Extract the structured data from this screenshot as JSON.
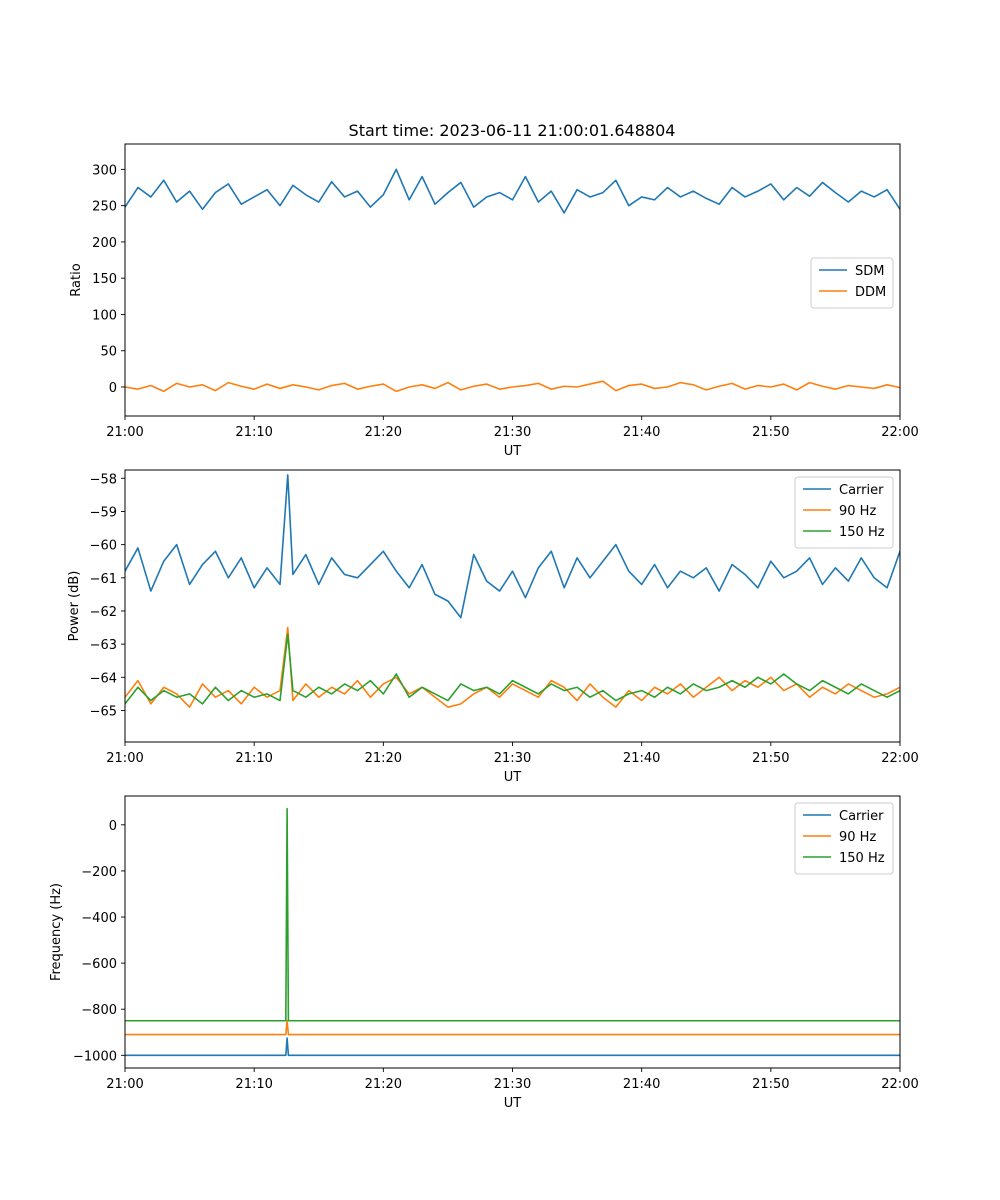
{
  "figure": {
    "title": "Start time: 2023-06-11 21:00:01.648804"
  },
  "colors": {
    "blue": "#1f77b4",
    "orange": "#ff7f0e",
    "green": "#2ca02c"
  },
  "chart_data": [
    {
      "type": "line",
      "title": "Start time: 2023-06-11 21:00:01.648804",
      "xlabel": "UT",
      "ylabel": "Ratio",
      "xlim": [
        "21:00",
        "22:00"
      ],
      "xticks": [
        "21:00",
        "21:10",
        "21:20",
        "21:30",
        "21:40",
        "21:50",
        "22:00"
      ],
      "ylim": [
        -40,
        335
      ],
      "yticks": [
        0,
        50,
        100,
        150,
        200,
        250,
        300
      ],
      "grid": false,
      "legend_position": "center-right",
      "x_minutes": [
        0,
        1,
        2,
        3,
        4,
        5,
        6,
        7,
        8,
        9,
        10,
        11,
        12,
        13,
        14,
        15,
        16,
        17,
        18,
        19,
        20,
        21,
        22,
        23,
        24,
        25,
        26,
        27,
        28,
        29,
        30,
        31,
        32,
        33,
        34,
        35,
        36,
        37,
        38,
        39,
        40,
        41,
        42,
        43,
        44,
        45,
        46,
        47,
        48,
        49,
        50,
        51,
        52,
        53,
        54,
        55,
        56,
        57,
        58,
        59,
        60
      ],
      "series": [
        {
          "name": "SDM",
          "color": "#1f77b4",
          "values": [
            248,
            275,
            262,
            285,
            255,
            270,
            245,
            268,
            280,
            252,
            262,
            272,
            250,
            278,
            265,
            255,
            283,
            262,
            270,
            248,
            265,
            300,
            258,
            290,
            252,
            268,
            282,
            248,
            262,
            268,
            258,
            290,
            255,
            270,
            240,
            272,
            262,
            268,
            285,
            250,
            262,
            258,
            275,
            262,
            270,
            260,
            252,
            275,
            262,
            270,
            280,
            258,
            275,
            263,
            282,
            268,
            255,
            270,
            262,
            272,
            245
          ]
        },
        {
          "name": "DDM",
          "color": "#ff7f0e",
          "values": [
            0,
            -3,
            2,
            -6,
            5,
            0,
            3,
            -5,
            6,
            1,
            -3,
            4,
            -2,
            3,
            0,
            -4,
            2,
            5,
            -3,
            1,
            4,
            -6,
            0,
            3,
            -2,
            6,
            -4,
            1,
            4,
            -3,
            0,
            2,
            5,
            -3,
            1,
            0,
            4,
            8,
            -5,
            2,
            4,
            -2,
            0,
            6,
            3,
            -4,
            1,
            5,
            -3,
            2,
            0,
            4,
            -4,
            6,
            1,
            -3,
            2,
            0,
            -2,
            3,
            -1
          ]
        }
      ]
    },
    {
      "type": "line",
      "title": "",
      "xlabel": "UT",
      "ylabel": "Power (dB)",
      "xlim": [
        "21:00",
        "22:00"
      ],
      "xticks": [
        "21:00",
        "21:10",
        "21:20",
        "21:30",
        "21:40",
        "21:50",
        "22:00"
      ],
      "ylim": [
        -65.95,
        -57.75
      ],
      "yticks": [
        -58,
        -59,
        -60,
        -61,
        -62,
        -63,
        -64,
        -65
      ],
      "grid": false,
      "legend_position": "upper-right",
      "x_minutes": [
        0,
        1,
        2,
        3,
        4,
        5,
        6,
        7,
        8,
        9,
        10,
        11,
        12,
        12.6,
        13,
        14,
        15,
        16,
        17,
        18,
        19,
        20,
        21,
        22,
        23,
        24,
        25,
        26,
        27,
        28,
        29,
        30,
        31,
        32,
        33,
        34,
        35,
        36,
        37,
        38,
        39,
        40,
        41,
        42,
        43,
        44,
        45,
        46,
        47,
        48,
        49,
        50,
        51,
        52,
        53,
        54,
        55,
        56,
        57,
        58,
        59,
        60
      ],
      "series": [
        {
          "name": "Carrier",
          "color": "#1f77b4",
          "values": [
            -60.8,
            -60.1,
            -61.4,
            -60.5,
            -60.0,
            -61.2,
            -60.6,
            -60.2,
            -61.0,
            -60.4,
            -61.3,
            -60.7,
            -61.2,
            -57.9,
            -60.9,
            -60.3,
            -61.2,
            -60.4,
            -60.9,
            -61.0,
            -60.6,
            -60.2,
            -60.8,
            -61.3,
            -60.6,
            -61.5,
            -61.7,
            -62.2,
            -60.3,
            -61.1,
            -61.4,
            -60.8,
            -61.6,
            -60.7,
            -60.2,
            -61.3,
            -60.4,
            -61.0,
            -60.5,
            -60.0,
            -60.8,
            -61.2,
            -60.6,
            -61.3,
            -60.8,
            -61.0,
            -60.7,
            -61.4,
            -60.6,
            -60.9,
            -61.3,
            -60.5,
            -61.0,
            -60.8,
            -60.4,
            -61.2,
            -60.7,
            -61.1,
            -60.4,
            -61.0,
            -61.3,
            -60.2
          ]
        },
        {
          "name": "90 Hz",
          "color": "#ff7f0e",
          "values": [
            -64.6,
            -64.1,
            -64.8,
            -64.3,
            -64.5,
            -64.9,
            -64.2,
            -64.6,
            -64.4,
            -64.8,
            -64.3,
            -64.6,
            -64.4,
            -62.5,
            -64.7,
            -64.2,
            -64.6,
            -64.3,
            -64.5,
            -64.1,
            -64.6,
            -64.2,
            -64.0,
            -64.5,
            -64.3,
            -64.6,
            -64.9,
            -64.8,
            -64.5,
            -64.3,
            -64.6,
            -64.2,
            -64.4,
            -64.6,
            -64.1,
            -64.3,
            -64.7,
            -64.2,
            -64.6,
            -64.9,
            -64.4,
            -64.7,
            -64.3,
            -64.5,
            -64.2,
            -64.6,
            -64.3,
            -64.0,
            -64.4,
            -64.1,
            -64.3,
            -64.0,
            -64.4,
            -64.2,
            -64.6,
            -64.3,
            -64.5,
            -64.2,
            -64.4,
            -64.6,
            -64.5,
            -64.3
          ]
        },
        {
          "name": "150 Hz",
          "color": "#2ca02c",
          "values": [
            -64.8,
            -64.3,
            -64.7,
            -64.4,
            -64.6,
            -64.5,
            -64.8,
            -64.3,
            -64.7,
            -64.4,
            -64.6,
            -64.5,
            -64.7,
            -62.7,
            -64.4,
            -64.6,
            -64.3,
            -64.5,
            -64.2,
            -64.4,
            -64.1,
            -64.5,
            -63.9,
            -64.6,
            -64.3,
            -64.5,
            -64.7,
            -64.2,
            -64.4,
            -64.3,
            -64.5,
            -64.1,
            -64.3,
            -64.5,
            -64.2,
            -64.4,
            -64.3,
            -64.6,
            -64.4,
            -64.7,
            -64.5,
            -64.4,
            -64.6,
            -64.3,
            -64.5,
            -64.2,
            -64.4,
            -64.3,
            -64.1,
            -64.3,
            -64.0,
            -64.2,
            -63.9,
            -64.2,
            -64.4,
            -64.1,
            -64.3,
            -64.5,
            -64.2,
            -64.4,
            -64.6,
            -64.4
          ]
        }
      ]
    },
    {
      "type": "line",
      "title": "",
      "xlabel": "UT",
      "ylabel": "Frequency (Hz)",
      "xlim": [
        "21:00",
        "22:00"
      ],
      "xticks": [
        "21:00",
        "21:10",
        "21:20",
        "21:30",
        "21:40",
        "21:50",
        "22:00"
      ],
      "ylim": [
        -1055,
        125
      ],
      "yticks": [
        0,
        -200,
        -400,
        -600,
        -800,
        -1000
      ],
      "grid": false,
      "legend_position": "upper-right",
      "x_minutes": [
        0,
        5,
        10,
        12.45,
        12.55,
        12.65,
        12.75,
        20,
        30,
        40,
        50,
        60
      ],
      "series": [
        {
          "name": "Carrier",
          "color": "#1f77b4",
          "values": [
            -1000,
            -1000,
            -1000,
            -1000,
            -925,
            -1000,
            -1000,
            -1000,
            -1000,
            -1000,
            -1000,
            -1000
          ]
        },
        {
          "name": "90 Hz",
          "color": "#ff7f0e",
          "values": [
            -910,
            -910,
            -910,
            -910,
            -850,
            -910,
            -910,
            -910,
            -910,
            -910,
            -910,
            -910
          ]
        },
        {
          "name": "150 Hz",
          "color": "#2ca02c",
          "values": [
            -850,
            -850,
            -850,
            -850,
            70,
            -850,
            -850,
            -850,
            -850,
            -850,
            -850,
            -850
          ]
        }
      ]
    }
  ]
}
